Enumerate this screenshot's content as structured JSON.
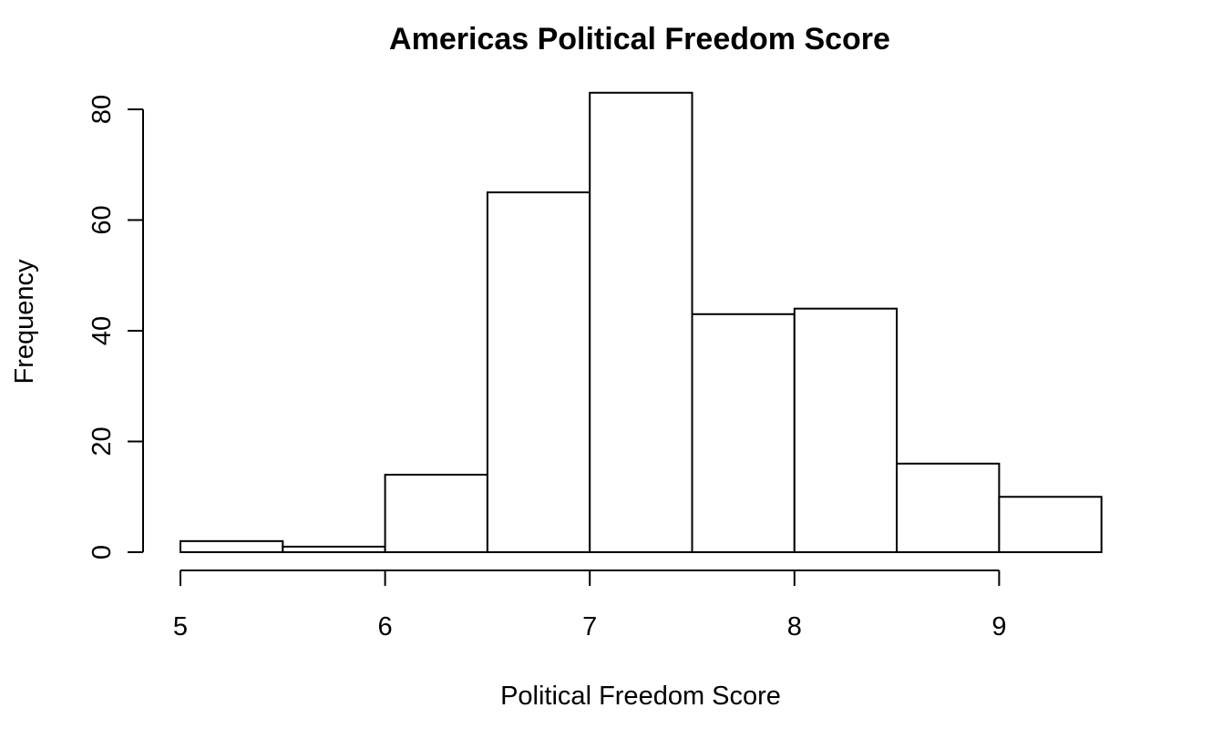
{
  "chart_data": {
    "type": "bar",
    "subtype": "histogram",
    "title": "Americas Political Freedom Score",
    "xlabel": "Political Freedom Score",
    "ylabel": "Frequency",
    "bins": [
      {
        "start": 5.0,
        "end": 5.5,
        "count": 2
      },
      {
        "start": 5.5,
        "end": 6.0,
        "count": 1
      },
      {
        "start": 6.0,
        "end": 6.5,
        "count": 14
      },
      {
        "start": 6.5,
        "end": 7.0,
        "count": 65
      },
      {
        "start": 7.0,
        "end": 7.5,
        "count": 83
      },
      {
        "start": 7.5,
        "end": 8.0,
        "count": 43
      },
      {
        "start": 8.0,
        "end": 8.5,
        "count": 44
      },
      {
        "start": 8.5,
        "end": 9.0,
        "count": 16
      },
      {
        "start": 9.0,
        "end": 9.5,
        "count": 10
      }
    ],
    "xlim": [
      5,
      9.5
    ],
    "ylim": [
      0,
      83
    ],
    "x_ticks": [
      5,
      6,
      7,
      8,
      9
    ],
    "x_tick_labels": [
      "5",
      "6",
      "7",
      "8",
      "9"
    ],
    "y_ticks": [
      0,
      20,
      40,
      60,
      80
    ],
    "y_tick_labels": [
      "0",
      "20",
      "40",
      "60",
      "80"
    ],
    "grid": false,
    "legend": "none",
    "bar_fill": "#ffffff",
    "bar_stroke": "#000000"
  }
}
